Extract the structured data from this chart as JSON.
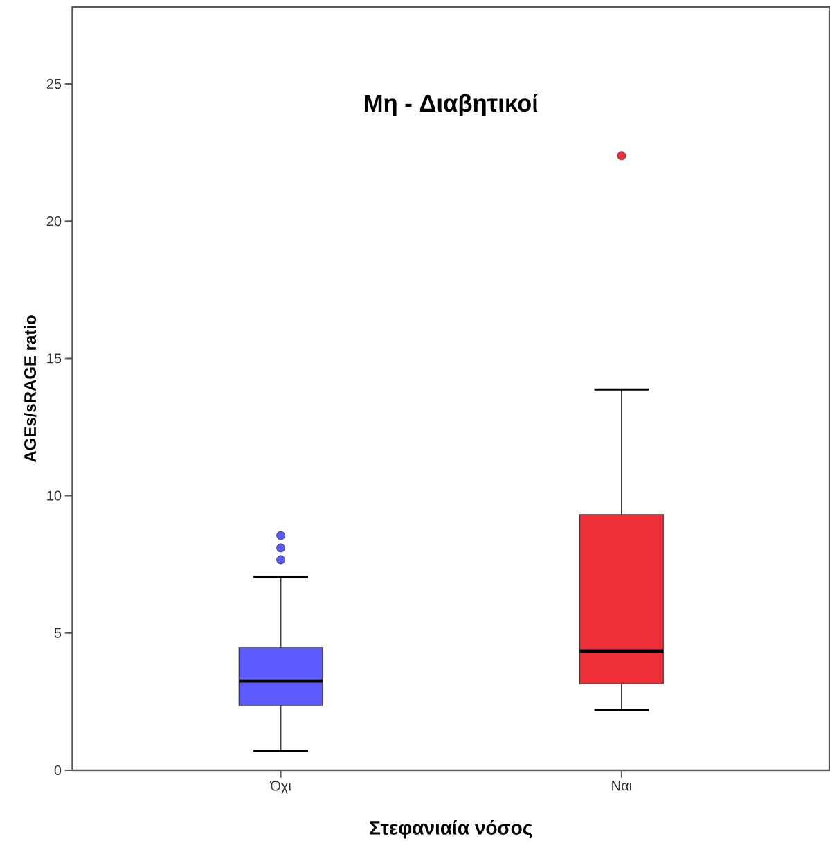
{
  "chart_data": {
    "type": "box",
    "title": "Μη - Διαβητικοί",
    "xlabel": "Στεφανιαία νόσος",
    "ylabel": "AGEs/sRAGE ratio",
    "categories": [
      "Όχι",
      "Ναι"
    ],
    "colors": [
      "#5b5bff",
      "#ef3038"
    ],
    "boxes": [
      {
        "low": 0.71,
        "q1": 2.37,
        "median": 3.25,
        "q3": 4.47,
        "high": 7.04,
        "outliers": [
          7.67,
          8.1,
          8.55
        ]
      },
      {
        "low": 2.19,
        "q1": 3.15,
        "median": 4.34,
        "q3": 9.31,
        "high": 13.87,
        "outliers": [
          22.38
        ]
      }
    ],
    "ylim": [
      0,
      27.8
    ],
    "yticks": [
      0,
      5,
      10,
      15,
      20,
      25
    ]
  }
}
